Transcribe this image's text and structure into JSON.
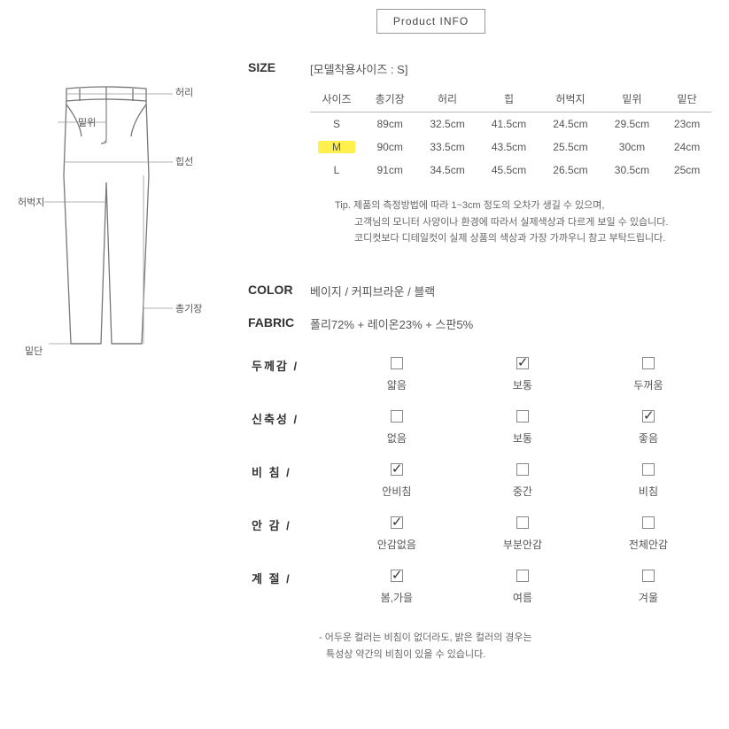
{
  "header": {
    "product_info": "Product INFO"
  },
  "size": {
    "label": "SIZE",
    "model_size": "[모델착용사이즈 : S]",
    "columns": [
      "사이즈",
      "총기장",
      "허리",
      "힙",
      "허벅지",
      "밑위",
      "밑단"
    ],
    "rows": [
      {
        "size": "S",
        "highlight": false,
        "values": [
          "89cm",
          "32.5cm",
          "41.5cm",
          "24.5cm",
          "29.5cm",
          "23cm"
        ]
      },
      {
        "size": "M",
        "highlight": true,
        "values": [
          "90cm",
          "33.5cm",
          "43.5cm",
          "25.5cm",
          "30cm",
          "24cm"
        ]
      },
      {
        "size": "L",
        "highlight": false,
        "values": [
          "91cm",
          "34.5cm",
          "45.5cm",
          "26.5cm",
          "30.5cm",
          "25cm"
        ]
      }
    ],
    "tip": {
      "prefix": "Tip.",
      "line1": "제품의 측정방법에 따라 1~3cm 정도의 오차가 생길 수 있으며,",
      "line2": "고객님의 모니터 사양이나 환경에 따라서 실제색상과 다르게 보일 수 있습니다.",
      "line3": "코디컷보다 디테일컷이 실제 상품의 색상과 가장 가까우니 참고 부탁드립니다."
    }
  },
  "color": {
    "label": "COLOR",
    "value": "베이지 / 커피브라운 / 블랙"
  },
  "fabric": {
    "label": "FABRIC",
    "value": "폴리72% + 레이온23% + 스판5%"
  },
  "attrs": {
    "thickness": {
      "label": "두께감 /",
      "options": [
        "얇음",
        "보통",
        "두꺼움"
      ],
      "checked": 1
    },
    "stretch": {
      "label": "신축성 /",
      "options": [
        "없음",
        "보통",
        "좋음"
      ],
      "checked": 2
    },
    "sheer": {
      "label": "비 침 /",
      "options": [
        "안비침",
        "중간",
        "비침"
      ],
      "checked": 0
    },
    "lining": {
      "label": "안 감 /",
      "options": [
        "안감없음",
        "부분안감",
        "전체안감"
      ],
      "checked": 0
    },
    "season": {
      "label": "계 절 /",
      "options": [
        "봄,가을",
        "여름",
        "겨울"
      ],
      "checked": 0
    }
  },
  "footnote": {
    "line1": "- 어두운 컬러는 비침이 없더라도, 밝은 컬러의 경우는",
    "line2": "특성상 약간의 비침이 있을 수 있습니다."
  },
  "diagram_labels": {
    "waist": "허리",
    "rise": "밑위",
    "hip": "힙선",
    "thigh": "허벅지",
    "length": "총기장",
    "hem": "밑단"
  },
  "style": {
    "highlight_color": "#fff04d",
    "border_color": "#bbbbbb",
    "text_color": "#555555",
    "diagram_stroke": "#777777"
  }
}
